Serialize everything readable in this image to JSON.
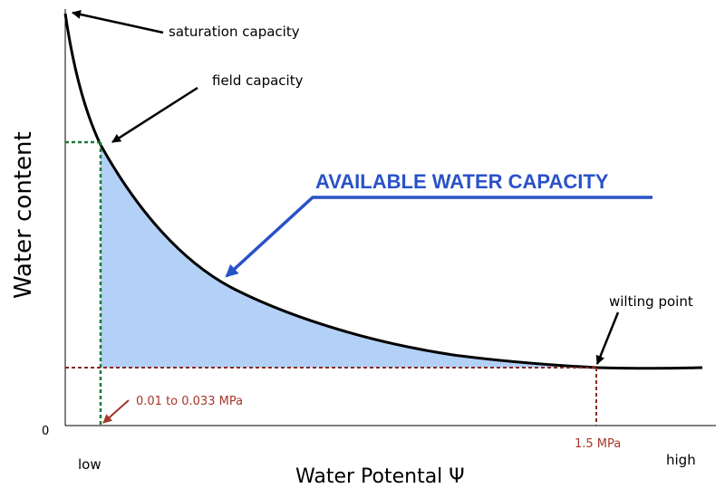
{
  "diagram": {
    "title": "AVAILABLE WATER CAPACITY",
    "y_axis_label": "Water content",
    "x_axis_label": "Water Potental Ψ",
    "x_low_label": "low",
    "x_high_label": "high",
    "y_zero_label": "0",
    "annotations": {
      "saturation": "saturation capacity",
      "field": "field capacity",
      "wilting": "wilting point",
      "field_potential": "0.01 to 0.033 MPa",
      "wilting_potential": "1.5 MPa"
    },
    "colors": {
      "curve": "#000000",
      "fill": "#b3d1f7",
      "title": "#2a52c8",
      "field_line": "#1f7a3a",
      "wilting_line": "#8b2a22",
      "red_text": "#a6372a"
    }
  }
}
